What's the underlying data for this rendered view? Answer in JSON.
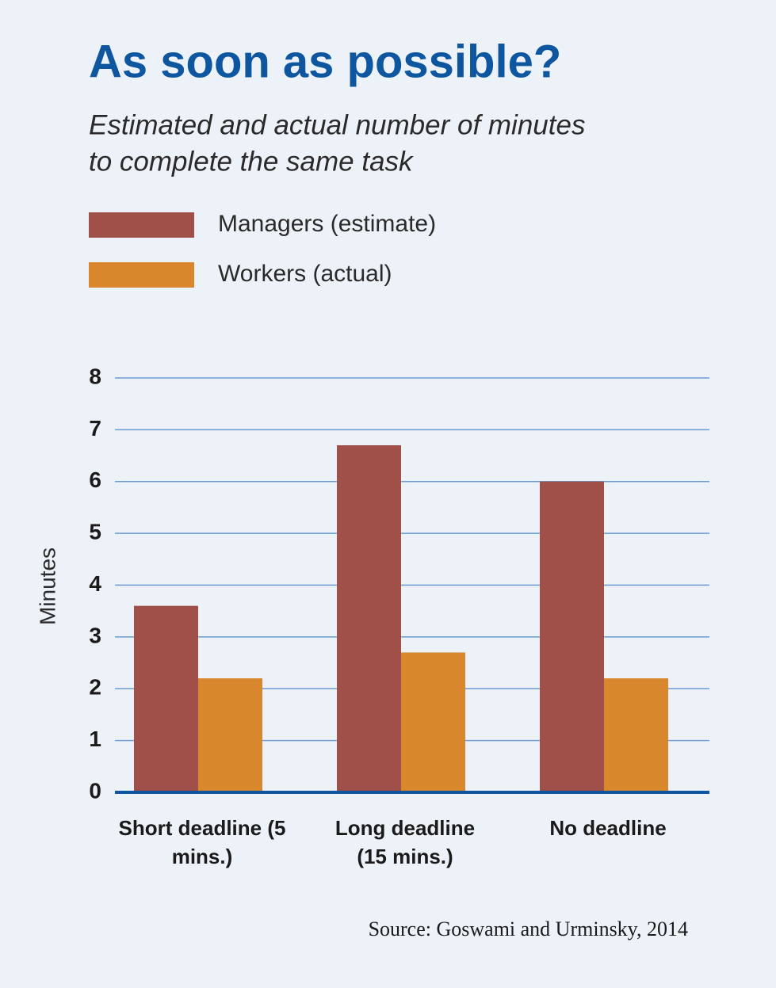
{
  "chart_data": {
    "type": "bar",
    "title": "As soon as possible?",
    "subtitle": [
      "Estimated and actual number of minutes",
      "to complete the same task"
    ],
    "y_label": "Minutes",
    "categories": [
      "Short deadline (5 mins.)",
      "Long deadline (15 mins.)",
      "No deadline"
    ],
    "series": [
      {
        "name": "Managers (estimate)",
        "color": "#a04f49",
        "values": [
          3.6,
          6.7,
          6.0
        ]
      },
      {
        "name": "Workers (actual)",
        "color": "#d8872c",
        "values": [
          2.2,
          2.7,
          2.2
        ]
      }
    ],
    "ylim": [
      0,
      8
    ],
    "yticks": [
      0,
      1,
      2,
      3,
      4,
      5,
      6,
      7,
      8
    ],
    "grid": true,
    "source": "Source: Goswami and Urminsky, 2014"
  }
}
